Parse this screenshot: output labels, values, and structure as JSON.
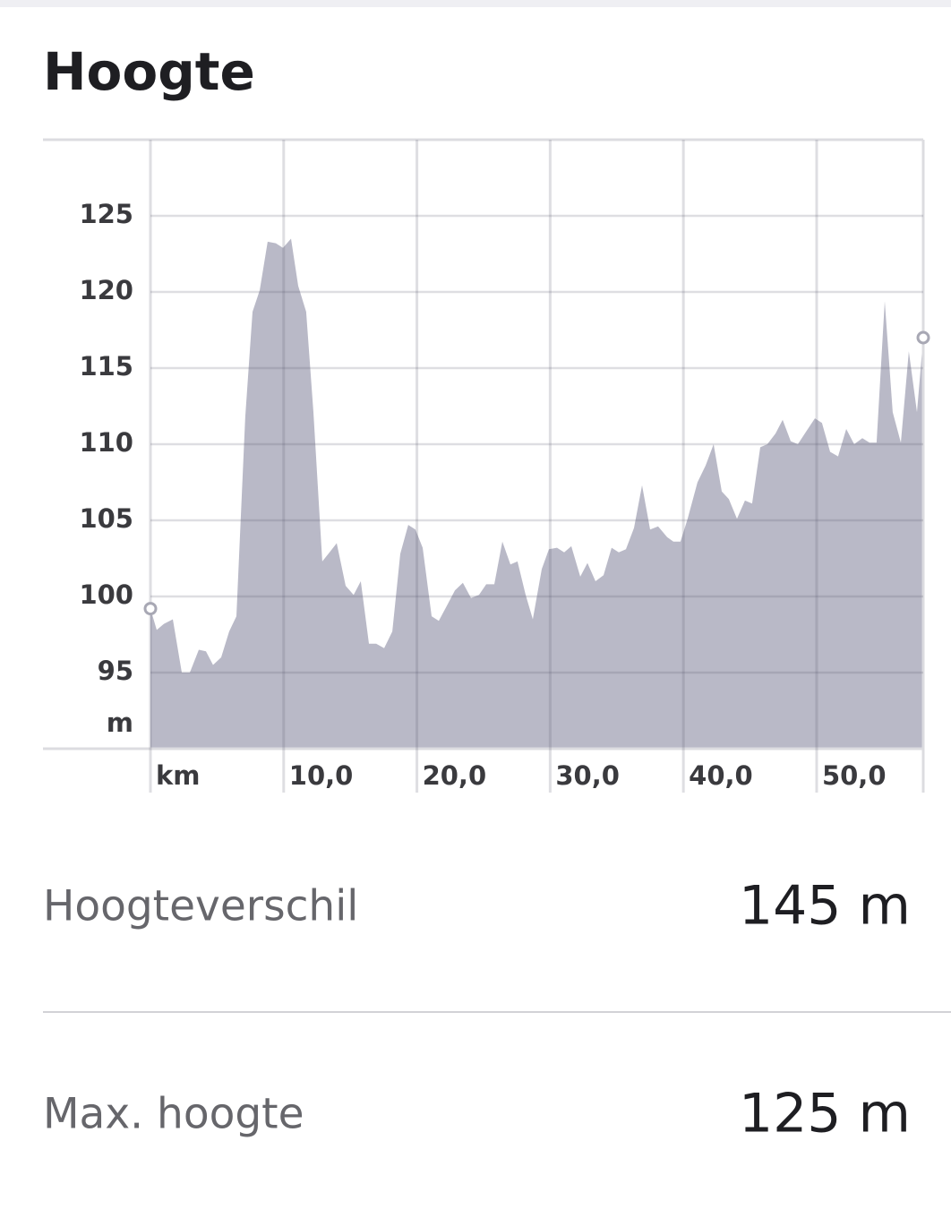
{
  "header": {
    "title": "Hoogte"
  },
  "chart_data": {
    "type": "area",
    "y_unit": "m",
    "color": "#b9b9c7",
    "grid": true,
    "markers": true,
    "x": [
      0,
      0.47,
      1.01,
      1.68,
      2.35,
      2.96,
      3.63,
      4.17,
      4.7,
      5.31,
      5.91,
      6.45,
      7.12,
      7.66,
      8.2,
      8.8,
      9.41,
      9.95,
      10.55,
      11.09,
      11.69,
      12.23,
      12.9,
      13.44,
      13.98,
      14.65,
      15.25,
      15.79,
      16.4,
      16.94,
      17.54,
      18.15,
      18.75,
      19.35,
      19.89,
      20.43,
      21.1,
      21.64,
      22.31,
      22.85,
      23.45,
      24.06,
      24.66,
      25.2,
      25.81,
      26.41,
      27.02,
      27.55,
      28.16,
      28.7,
      29.37,
      29.91,
      30.51,
      31.05,
      31.59,
      32.26,
      32.8,
      33.4,
      34.01,
      34.61,
      35.15,
      35.69,
      36.29,
      36.9,
      37.5,
      38.1,
      38.78,
      39.25,
      39.78,
      40.32,
      41.06,
      41.67,
      42.27,
      42.88,
      43.41,
      44.02,
      44.62,
      45.16,
      45.77,
      46.3,
      46.91,
      47.45,
      48.05,
      48.59,
      49.19,
      49.87,
      50.4,
      51.01,
      51.61,
      52.22,
      52.82,
      53.43,
      53.97,
      54.5,
      55.11,
      55.71,
      56.32,
      56.92,
      57.53,
      58.0
    ],
    "values": [
      99.2,
      97.8,
      98.2,
      98.5,
      95.0,
      95.0,
      96.5,
      96.4,
      95.5,
      96.0,
      97.7,
      98.7,
      111.8,
      118.7,
      120.1,
      123.3,
      123.2,
      122.9,
      123.5,
      120.4,
      118.7,
      112.1,
      102.3,
      102.9,
      103.5,
      100.7,
      100.1,
      101.0,
      96.9,
      96.9,
      96.6,
      97.7,
      102.8,
      104.7,
      104.4,
      103.2,
      98.7,
      98.4,
      99.5,
      100.4,
      100.9,
      99.9,
      100.1,
      100.8,
      100.8,
      103.6,
      102.1,
      102.3,
      100.1,
      98.5,
      101.8,
      103.1,
      103.2,
      102.9,
      103.3,
      101.3,
      102.2,
      101.0,
      101.4,
      103.2,
      102.9,
      103.1,
      104.5,
      107.3,
      104.4,
      104.6,
      103.9,
      103.6,
      103.6,
      105.1,
      107.5,
      108.6,
      110.0,
      106.9,
      106.4,
      105.1,
      106.3,
      106.1,
      109.8,
      110.0,
      110.7,
      111.6,
      110.2,
      110.0,
      110.8,
      111.7,
      111.4,
      109.5,
      109.2,
      111.0,
      110.0,
      110.4,
      110.1,
      110.1,
      119.4,
      112.1,
      110.1,
      116.1,
      112.1,
      117.0
    ],
    "xlim": [
      0,
      58
    ],
    "ylim": [
      90,
      130
    ],
    "xticks": [
      {
        "value": 0,
        "label": "km"
      },
      {
        "value": 10,
        "label": "10,0"
      },
      {
        "value": 20,
        "label": "20,0"
      },
      {
        "value": 30,
        "label": "30,0"
      },
      {
        "value": 40,
        "label": "40,0"
      },
      {
        "value": 50,
        "label": "50,0"
      }
    ],
    "yticks": [
      95,
      100,
      105,
      110,
      115,
      120,
      125
    ]
  },
  "stats": [
    {
      "label": "Hoogteverschil",
      "value": "145 m"
    },
    {
      "label": "Max. hoogte",
      "value": "125 m"
    }
  ]
}
